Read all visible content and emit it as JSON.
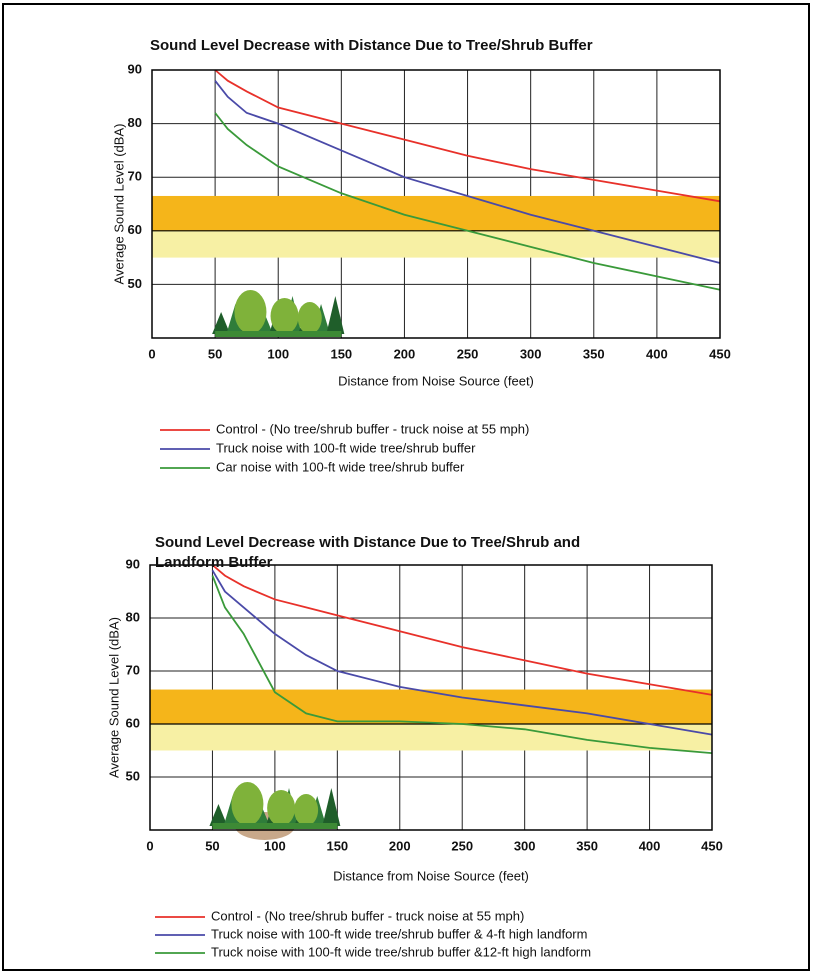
{
  "chart_data": [
    {
      "type": "line",
      "title": "Sound Level Decrease with Distance Due to Tree/Shrub Buffer",
      "x_label": "Distance from Noise Source (feet)",
      "y_label": "Average Sound Level (dBA)",
      "x": [
        50,
        60,
        75,
        100,
        150,
        200,
        250,
        300,
        350,
        400,
        450
      ],
      "series": [
        {
          "name": "Control - (No tree/shrub buffer - truck noise at 55 mph)",
          "color": "#e8312a",
          "values": [
            90,
            88,
            86,
            83,
            80,
            77,
            74,
            71.5,
            69.5,
            67.5,
            65.5
          ]
        },
        {
          "name": "Truck noise with 100-ft wide tree/shrub buffer",
          "color": "#4a4aa8",
          "values": [
            88,
            85,
            82,
            80,
            75,
            70,
            66.5,
            63,
            60,
            57,
            54
          ]
        },
        {
          "name": "Car noise with 100-ft wide tree/shrub buffer",
          "color": "#3a9a3a",
          "values": [
            82,
            79,
            76,
            72,
            67,
            63,
            60,
            57,
            54,
            51.5,
            49
          ]
        }
      ],
      "xlim": [
        0,
        450
      ],
      "xticks": [
        0,
        50,
        100,
        150,
        200,
        250,
        300,
        350,
        400,
        450
      ],
      "ylim": [
        40,
        90
      ],
      "yticks": [
        50,
        60,
        70,
        80,
        90
      ],
      "grid": true,
      "bands": [
        {
          "from": 60,
          "to": 66.5,
          "color": "#f5b51a"
        },
        {
          "from": 55,
          "to": 60,
          "color": "#f7f0a4"
        }
      ],
      "reference_line": 60,
      "legend": "below"
    },
    {
      "type": "line",
      "title": "Sound Level Decrease with Distance Due to Tree/Shrub and Landform Buffer",
      "x_label": "Distance from Noise Source (feet)",
      "y_label": "Average Sound Level (dBA)",
      "x": [
        50,
        60,
        75,
        100,
        125,
        150,
        200,
        250,
        300,
        350,
        400,
        450
      ],
      "series": [
        {
          "name": "Control - (No tree/shrub buffer - truck noise at 55 mph)",
          "color": "#e8312a",
          "values": [
            90,
            88,
            86,
            83.5,
            82,
            80.5,
            77.5,
            74.5,
            72,
            69.5,
            67.5,
            65.5
          ]
        },
        {
          "name": "Truck noise with 100-ft wide tree/shrub buffer & 4-ft high landform",
          "color": "#4a4aa8",
          "values": [
            89,
            85,
            82,
            77,
            73,
            70,
            67,
            65,
            63.5,
            62,
            60,
            58
          ]
        },
        {
          "name": "Truck noise with 100-ft wide tree/shrub buffer &12-ft high landform",
          "color": "#3a9a3a",
          "values": [
            88,
            82,
            77,
            66,
            62,
            60.5,
            60.5,
            60,
            59,
            57,
            55.5,
            54.5
          ]
        }
      ],
      "xlim": [
        0,
        450
      ],
      "xticks": [
        0,
        50,
        100,
        150,
        200,
        250,
        300,
        350,
        400,
        450
      ],
      "ylim": [
        40,
        90
      ],
      "yticks": [
        50,
        60,
        70,
        80,
        90
      ],
      "grid": true,
      "bands": [
        {
          "from": 60,
          "to": 66.5,
          "color": "#f5b51a"
        },
        {
          "from": 55,
          "to": 60,
          "color": "#f7f0a4"
        }
      ],
      "reference_line": 60,
      "legend": "below"
    }
  ]
}
